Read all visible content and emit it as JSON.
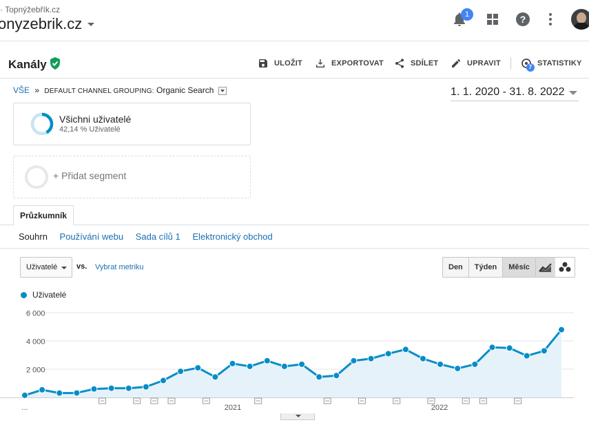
{
  "topbar": {
    "account_small": "· Topnýžebřík.cz",
    "property_name": "onyzebrik.cz",
    "notification_count": "1"
  },
  "header": {
    "title": "Kanály",
    "buttons": {
      "save": "ULOŽIT",
      "export": "EXPORTOVAT",
      "share": "SDÍLET",
      "edit": "UPRAVIT",
      "insights": "STATISTIKY"
    },
    "insights_badge": "7"
  },
  "breadcrumb": {
    "all": "VŠE",
    "sep": "»",
    "grouping": "DEFAULT CHANNEL GROUPING:",
    "value": "Organic Search"
  },
  "date_range": "1. 1. 2020 - 31. 8. 2022",
  "segments": {
    "active_name": "Všichni uživatelé",
    "active_sub": "42,14 % Uživatelé",
    "add_label": "+ Přidat segment"
  },
  "explorer": {
    "tab": "Průzkumník",
    "subtabs": [
      "Souhrn",
      "Používání webu",
      "Sada cílů 1",
      "Elektronický obchod"
    ]
  },
  "controls": {
    "metric": "Uživatelé",
    "vs": "vs.",
    "pick_metric": "Vybrat metriku",
    "periods": [
      "Den",
      "Týden",
      "Měsíc"
    ],
    "period_selected": "Měsíc"
  },
  "chart_data": {
    "type": "area",
    "series": [
      {
        "name": "Uživatelé",
        "values": [
          150,
          540,
          310,
          320,
          600,
          650,
          650,
          750,
          1200,
          1850,
          2100,
          1450,
          2400,
          2200,
          2600,
          2200,
          2350,
          1450,
          1550,
          2600,
          2750,
          3100,
          3400,
          2750,
          2350,
          2050,
          2350,
          3550,
          3500,
          2950,
          3300,
          4800
        ]
      }
    ],
    "y_ticks": [
      "6 000",
      "4 000",
      "2 000"
    ],
    "ylim": [
      0,
      6000
    ],
    "x_labels": [
      "...",
      "2021",
      "2022"
    ],
    "annotation_indices": [
      4,
      6,
      7,
      8,
      10,
      13,
      17,
      19,
      21,
      23,
      25,
      26,
      28
    ],
    "color": "#058dc7",
    "grid": true
  }
}
